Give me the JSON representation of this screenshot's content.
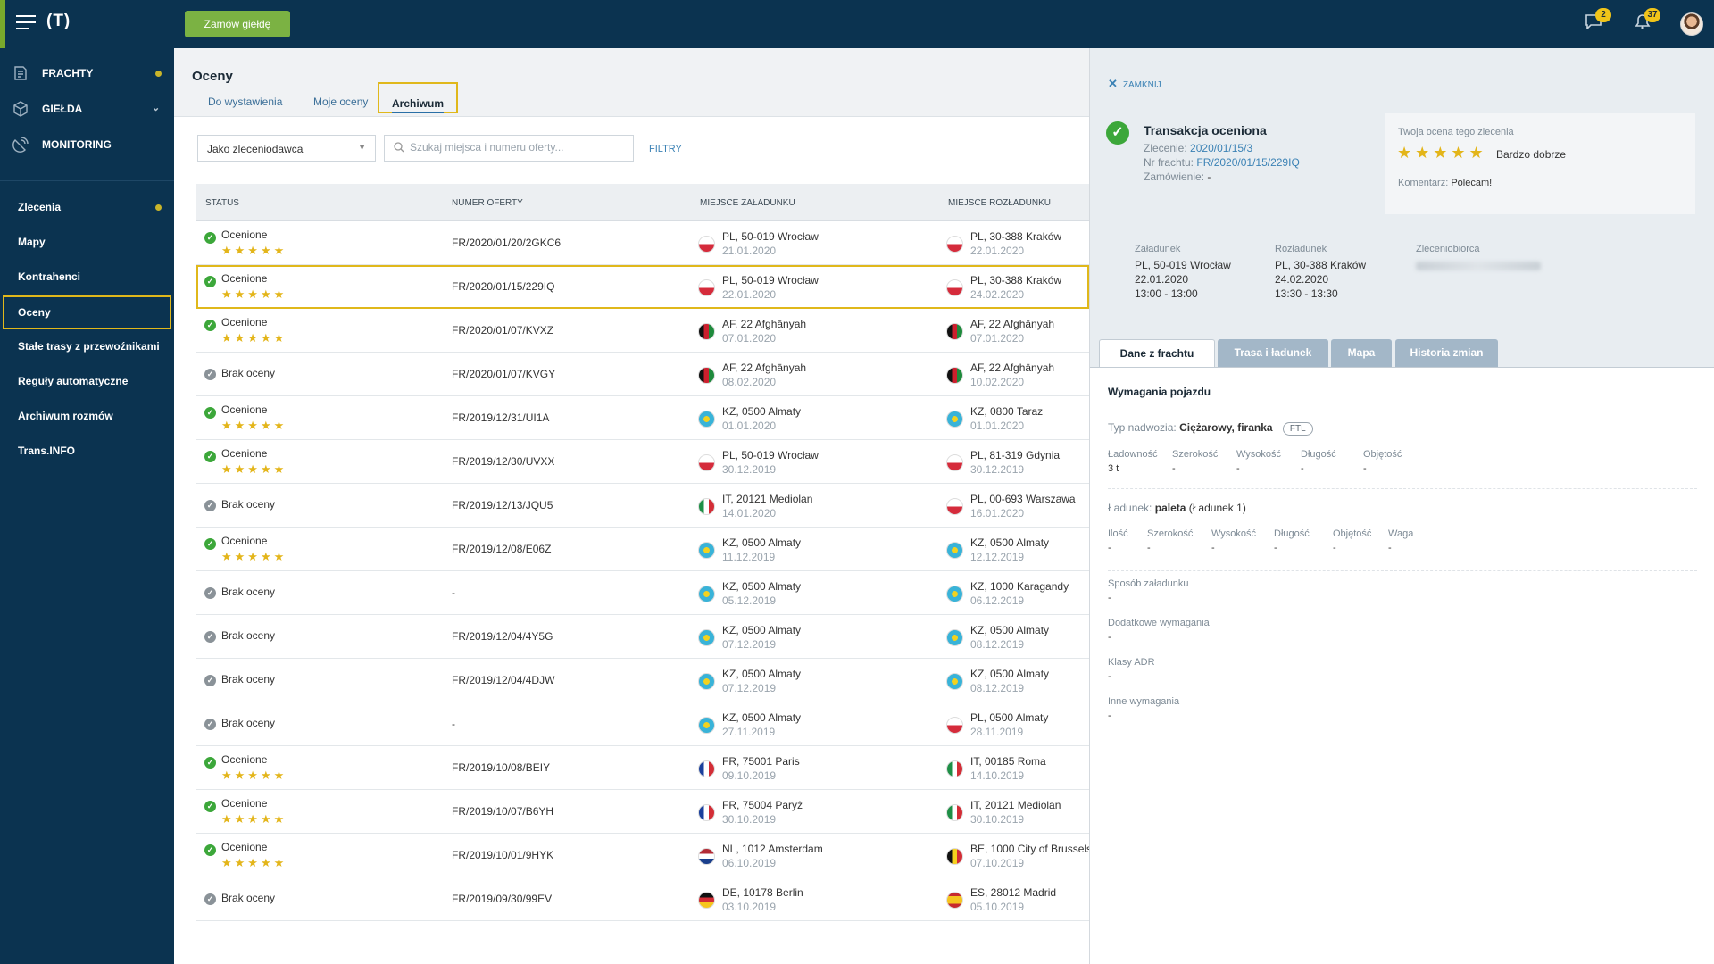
{
  "topbar": {
    "logo": "(T)",
    "order_button": "Zamów giełdę",
    "messages_count": "2",
    "notifications_count": "37"
  },
  "sidebar": {
    "main_items": [
      {
        "label": "FRACHTY"
      },
      {
        "label": "GIEŁDA"
      },
      {
        "label": "MONITORING"
      }
    ],
    "sub_items": [
      {
        "label": "Zlecenia"
      },
      {
        "label": "Mapy"
      },
      {
        "label": "Kontrahenci"
      },
      {
        "label": "Oceny"
      },
      {
        "label": "Stałe trasy z przewoźnikami"
      },
      {
        "label": "Reguły automatyczne"
      },
      {
        "label": "Archiwum rozmów"
      },
      {
        "label": "Trans.INFO"
      }
    ]
  },
  "main": {
    "title": "Oceny",
    "tabs": [
      "Do wystawienia",
      "Moje oceny",
      "Archiwum"
    ],
    "filter_select": "Jako zleceniodawca",
    "search_placeholder": "Szukaj miejsca i numeru oferty...",
    "filters_link": "FILTRY",
    "columns": [
      "STATUS",
      "NUMER OFERTY",
      "MIEJSCE ZAŁADUNKU",
      "MIEJSCE ROZŁADUNKU"
    ],
    "rows": [
      {
        "status": "Ocenione",
        "rated": true,
        "offer": "FR/2020/01/20/2GKC6",
        "load_flag": "pl",
        "load_place": "PL, 50-019 Wrocław",
        "load_date": "21.01.2020",
        "unload_flag": "pl",
        "unload_place": "PL, 30-388 Kraków",
        "unload_date": "22.01.2020"
      },
      {
        "status": "Ocenione",
        "rated": true,
        "offer": "FR/2020/01/15/229IQ",
        "load_flag": "pl",
        "load_place": "PL, 50-019 Wrocław",
        "load_date": "22.01.2020",
        "unload_flag": "pl",
        "unload_place": "PL, 30-388 Kraków",
        "unload_date": "24.02.2020"
      },
      {
        "status": "Ocenione",
        "rated": true,
        "offer": "FR/2020/01/07/KVXZ",
        "load_flag": "af",
        "load_place": "AF, 22 Afghānyah",
        "load_date": "07.01.2020",
        "unload_flag": "af",
        "unload_place": "AF, 22 Afghānyah",
        "unload_date": "07.01.2020"
      },
      {
        "status": "Brak oceny",
        "rated": false,
        "offer": "FR/2020/01/07/KVGY",
        "load_flag": "af",
        "load_place": "AF, 22 Afghānyah",
        "load_date": "08.02.2020",
        "unload_flag": "af",
        "unload_place": "AF, 22 Afghānyah",
        "unload_date": "10.02.2020"
      },
      {
        "status": "Ocenione",
        "rated": true,
        "offer": "FR/2019/12/31/UI1A",
        "load_flag": "kz",
        "load_place": "KZ, 0500 Almaty",
        "load_date": "01.01.2020",
        "unload_flag": "kz",
        "unload_place": "KZ, 0800 Taraz",
        "unload_date": "01.01.2020"
      },
      {
        "status": "Ocenione",
        "rated": true,
        "offer": "FR/2019/12/30/UVXX",
        "load_flag": "pl",
        "load_place": "PL, 50-019 Wrocław",
        "load_date": "30.12.2019",
        "unload_flag": "pl",
        "unload_place": "PL, 81-319 Gdynia",
        "unload_date": "30.12.2019"
      },
      {
        "status": "Brak oceny",
        "rated": false,
        "offer": "FR/2019/12/13/JQU5",
        "load_flag": "it",
        "load_place": "IT, 20121 Mediolan",
        "load_date": "14.01.2020",
        "unload_flag": "pl",
        "unload_place": "PL, 00-693 Warszawa",
        "unload_date": "16.01.2020"
      },
      {
        "status": "Ocenione",
        "rated": true,
        "offer": "FR/2019/12/08/E06Z",
        "load_flag": "kz",
        "load_place": "KZ, 0500 Almaty",
        "load_date": "11.12.2019",
        "unload_flag": "kz",
        "unload_place": "KZ, 0500 Almaty",
        "unload_date": "12.12.2019"
      },
      {
        "status": "Brak oceny",
        "rated": false,
        "offer": "-",
        "load_flag": "kz",
        "load_place": "KZ, 0500 Almaty",
        "load_date": "05.12.2019",
        "unload_flag": "kz",
        "unload_place": "KZ, 1000 Karagandy",
        "unload_date": "06.12.2019"
      },
      {
        "status": "Brak oceny",
        "rated": false,
        "offer": "FR/2019/12/04/4Y5G",
        "load_flag": "kz",
        "load_place": "KZ, 0500 Almaty",
        "load_date": "07.12.2019",
        "unload_flag": "kz",
        "unload_place": "KZ, 0500 Almaty",
        "unload_date": "08.12.2019"
      },
      {
        "status": "Brak oceny",
        "rated": false,
        "offer": "FR/2019/12/04/4DJW",
        "load_flag": "kz",
        "load_place": "KZ, 0500 Almaty",
        "load_date": "07.12.2019",
        "unload_flag": "kz",
        "unload_place": "KZ, 0500 Almaty",
        "unload_date": "08.12.2019"
      },
      {
        "status": "Brak oceny",
        "rated": false,
        "offer": "-",
        "load_flag": "kz",
        "load_place": "KZ, 0500 Almaty",
        "load_date": "27.11.2019",
        "unload_flag": "pl",
        "unload_place": "PL, 0500 Almaty",
        "unload_date": "28.11.2019"
      },
      {
        "status": "Ocenione",
        "rated": true,
        "offer": "FR/2019/10/08/BEIY",
        "load_flag": "fr",
        "load_place": "FR, 75001 Paris",
        "load_date": "09.10.2019",
        "unload_flag": "it",
        "unload_place": "IT, 00185 Roma",
        "unload_date": "14.10.2019"
      },
      {
        "status": "Ocenione",
        "rated": true,
        "offer": "FR/2019/10/07/B6YH",
        "load_flag": "fr",
        "load_place": "FR, 75004 Paryż",
        "load_date": "30.10.2019",
        "unload_flag": "it",
        "unload_place": "IT, 20121 Mediolan",
        "unload_date": "30.10.2019"
      },
      {
        "status": "Ocenione",
        "rated": true,
        "offer": "FR/2019/10/01/9HYK",
        "load_flag": "nl",
        "load_place": "NL, 1012 Amsterdam",
        "load_date": "06.10.2019",
        "unload_flag": "be",
        "unload_place": "BE, 1000 City of Brussels",
        "unload_date": "07.10.2019"
      },
      {
        "status": "Brak oceny",
        "rated": false,
        "offer": "FR/2019/09/30/99EV",
        "load_flag": "de",
        "load_place": "DE, 10178 Berlin",
        "load_date": "03.10.2019",
        "unload_flag": "es",
        "unload_place": "ES, 28012 Madrid",
        "unload_date": "05.10.2019"
      }
    ]
  },
  "panel": {
    "close_label": "ZAMKNIJ",
    "title": "Transakcja oceniona",
    "order_label": "Zlecenie:",
    "order_value": "2020/01/15/3",
    "freight_label": "Nr frachtu:",
    "freight_value": "FR/2020/01/15/229IQ",
    "orders_label": "Zamówienie:",
    "orders_value": "-",
    "rating_label": "Twoja ocena tego zlecenia",
    "rating_stars": 5,
    "rating_text": "Bardzo dobrze",
    "comment_label": "Komentarz:",
    "comment_value": "Polecam!",
    "loading": {
      "header": "Załadunek",
      "place": "PL, 50-019 Wrocław",
      "date": "22.01.2020",
      "time": "13:00 - 13:00"
    },
    "unloading": {
      "header": "Rozładunek",
      "place": "PL, 30-388 Kraków",
      "date": "24.02.2020",
      "time": "13:30 - 13:30"
    },
    "client_header": "Zleceniobiorca",
    "tabs": [
      "Dane z frachtu",
      "Trasa i ładunek",
      "Mapa",
      "Historia zmian"
    ],
    "vehicle": {
      "title": "Wymagania pojazdu",
      "body_label": "Typ nadwozia:",
      "body_value": "Ciężarowy, firanka",
      "body_badge": "FTL",
      "cols": [
        "Ładowność",
        "Szerokość",
        "Wysokość",
        "Długość",
        "Objętość"
      ],
      "vals": [
        "3 t",
        "-",
        "-",
        "-",
        "-"
      ]
    },
    "cargo": {
      "label": "Ładunek:",
      "value": "paleta",
      "suffix": "(Ładunek 1)",
      "cols": [
        "Ilość",
        "Szerokość",
        "Wysokość",
        "Długość",
        "Objętość",
        "Waga"
      ],
      "vals": [
        "-",
        "-",
        "-",
        "-",
        "-",
        "-"
      ]
    },
    "extra": [
      {
        "label": "Sposób załadunku",
        "value": "-"
      },
      {
        "label": "Dodatkowe wymagania",
        "value": "-"
      },
      {
        "label": "Klasy ADR",
        "value": "-"
      },
      {
        "label": "Inne wymagania",
        "value": "-"
      }
    ]
  }
}
